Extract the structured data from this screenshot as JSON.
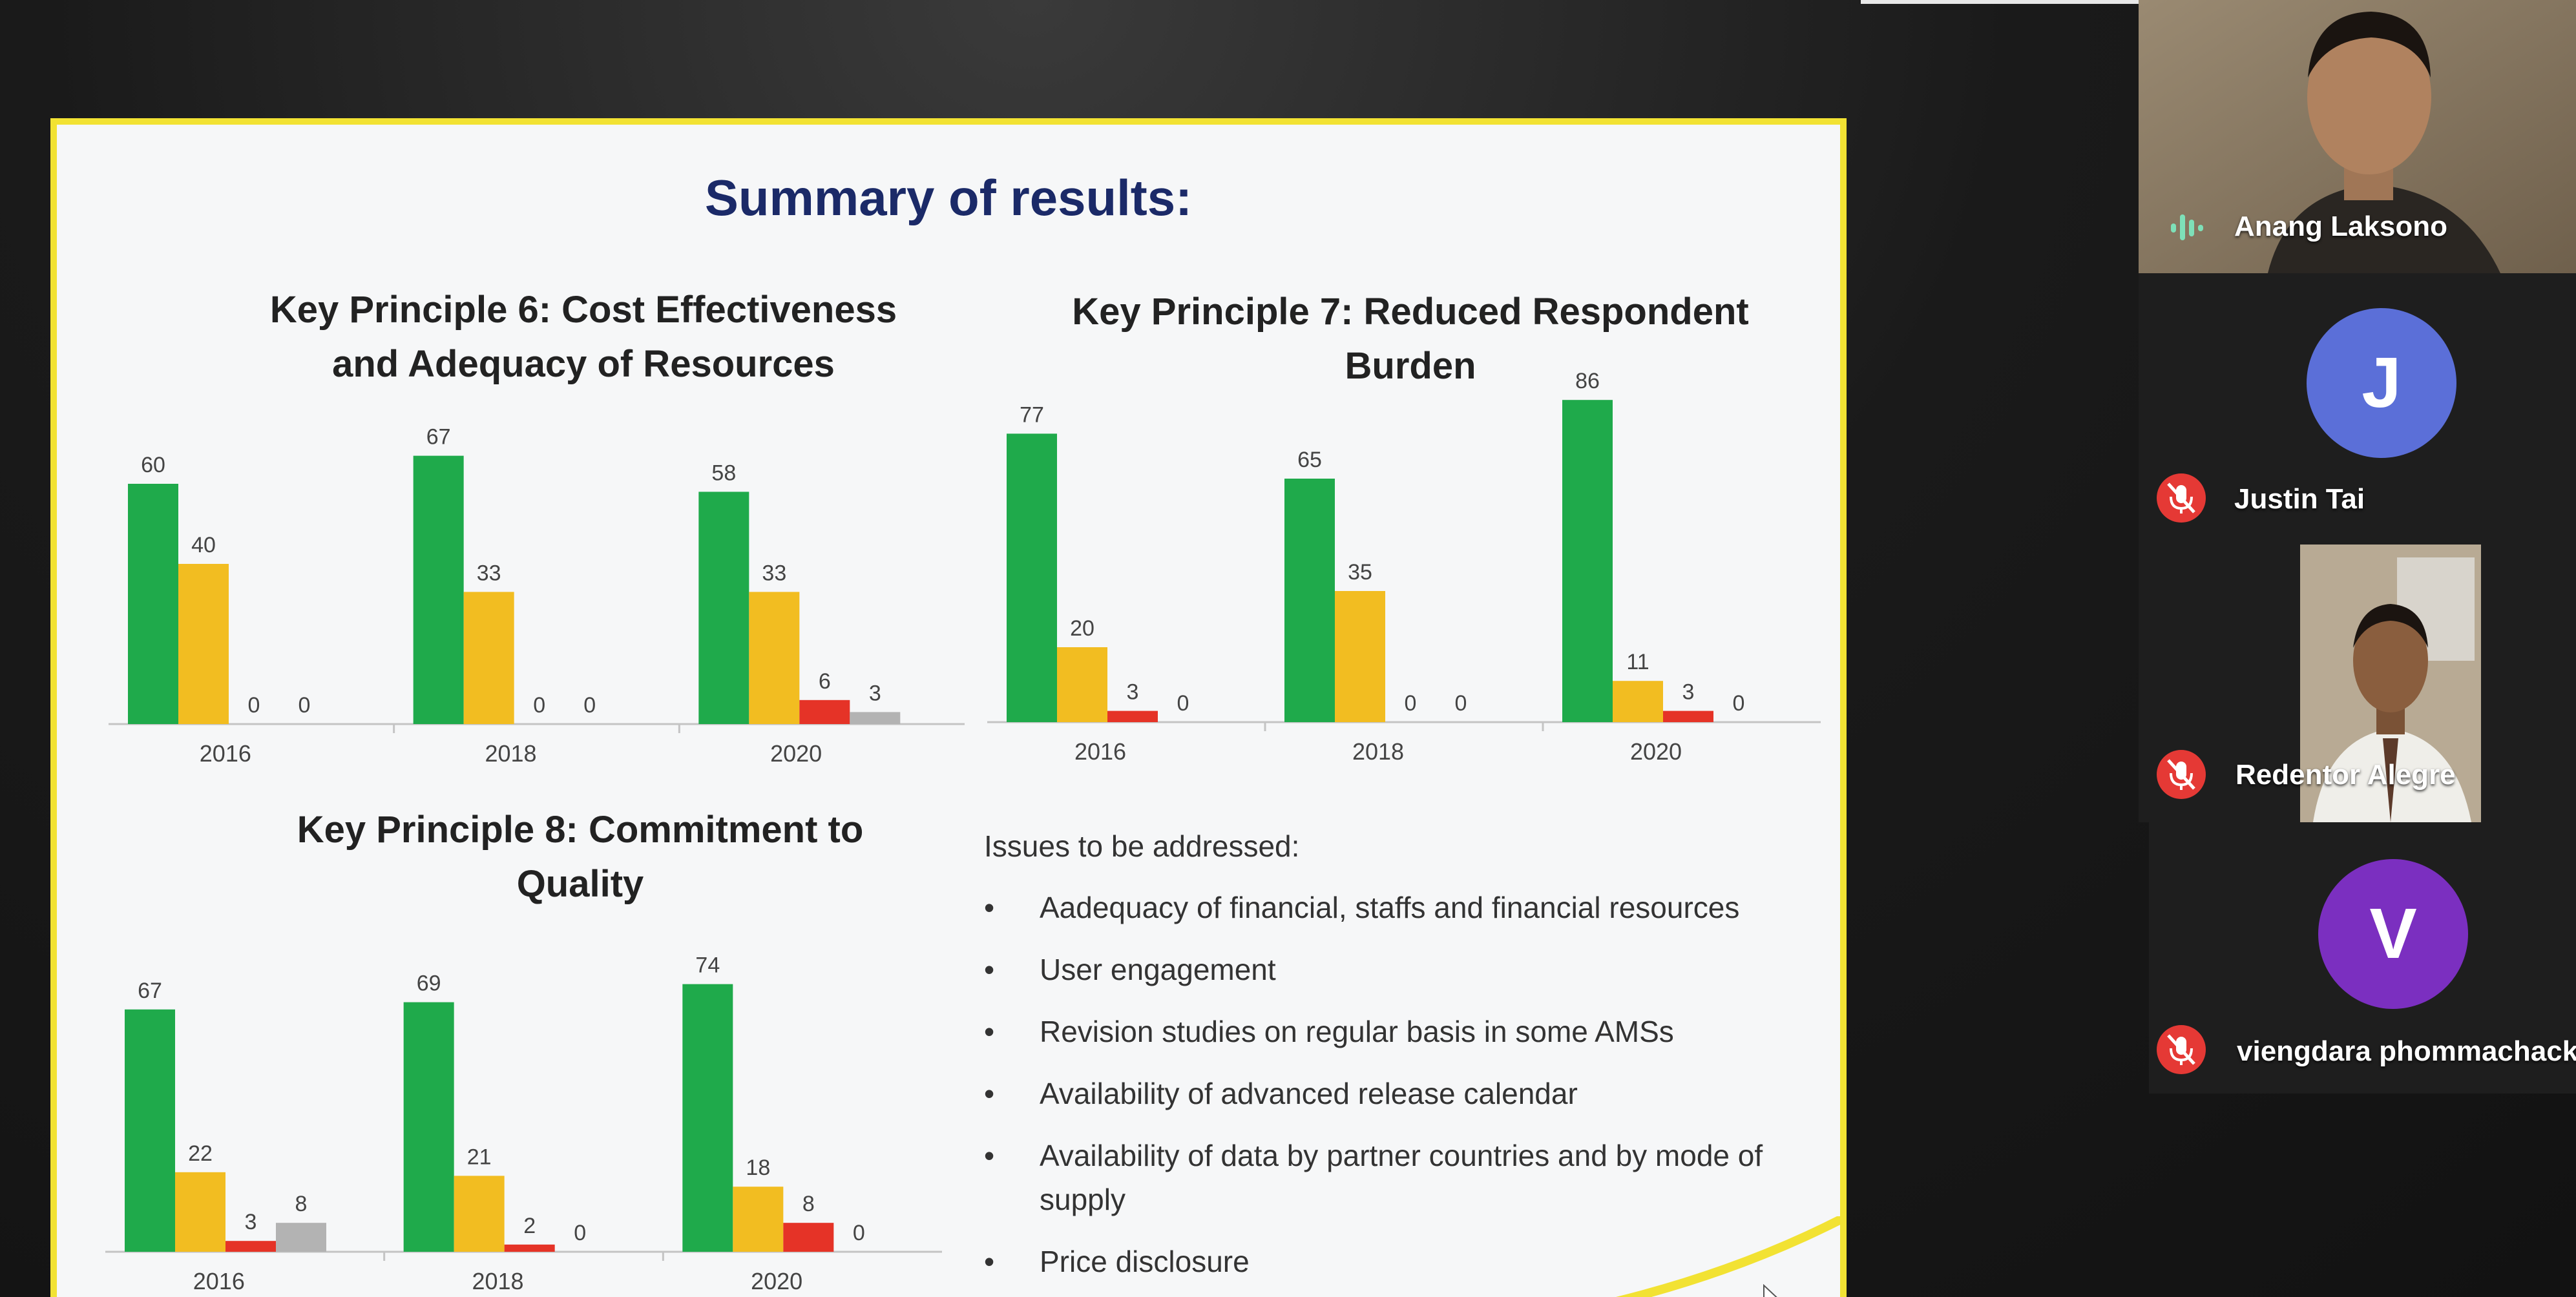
{
  "slide": {
    "title": "Summary of results:",
    "colors": {
      "green": "#1faa4b",
      "yellow": "#f2bd21",
      "red": "#e53327",
      "grey": "#b3b3b3"
    }
  },
  "chart_data": [
    {
      "type": "bar",
      "title": "Key Principle 6: Cost Effectiveness and Adequacy of Resources",
      "categories": [
        "2016",
        "2018",
        "2020"
      ],
      "series": [
        {
          "values": [
            60,
            67,
            58
          ]
        },
        {
          "values": [
            40,
            33,
            33
          ]
        },
        {
          "values": [
            0,
            0,
            6
          ]
        },
        {
          "values": [
            0,
            0,
            3
          ]
        }
      ],
      "ylim": [
        0,
        100
      ],
      "grid": false,
      "legend": "none"
    },
    {
      "type": "bar",
      "title": "Key Principle 7: Reduced Respondent Burden",
      "categories": [
        "2016",
        "2018",
        "2020"
      ],
      "series": [
        {
          "values": [
            77,
            65,
            86
          ]
        },
        {
          "values": [
            20,
            35,
            11
          ]
        },
        {
          "values": [
            3,
            0,
            3
          ]
        },
        {
          "values": [
            0,
            0,
            0
          ]
        }
      ],
      "ylim": [
        0,
        100
      ],
      "grid": false,
      "legend": "none"
    },
    {
      "type": "bar",
      "title": "Key Principle 8: Commitment to Quality",
      "categories": [
        "2016",
        "2018",
        "2020"
      ],
      "series": [
        {
          "values": [
            67,
            69,
            74
          ]
        },
        {
          "values": [
            22,
            21,
            18
          ]
        },
        {
          "values": [
            3,
            2,
            8
          ]
        },
        {
          "values": [
            8,
            0,
            0
          ]
        }
      ],
      "ylim": [
        0,
        100
      ],
      "grid": false,
      "legend": "none"
    }
  ],
  "chart_titles": [
    {
      "line1": "Key Principle 6: Cost Effectiveness",
      "line2": "and Adequacy of Resources"
    },
    {
      "line1": "Key Principle 7: Reduced Respondent",
      "line2": "Burden"
    },
    {
      "line1": "Key Principle 8: Commitment to",
      "line2": "Quality"
    }
  ],
  "issues": {
    "heading": "Issues to be addressed:",
    "bullet": "•",
    "items": [
      "Aadequacy of financial, staffs and financial resources",
      "User engagement",
      "Revision studies on regular basis in some AMSs",
      "Availability of advanced release calendar",
      "Availability of data by partner countries and by mode of supply",
      "Price disclosure"
    ]
  },
  "participants": [
    {
      "name": "Anang Laksono",
      "status": "speaking",
      "icon": "audio-wave-icon"
    },
    {
      "name": "Justin Tai",
      "initial": "J",
      "avatar_color": "#5b6fd8",
      "status": "muted",
      "icon": "mic-muted-icon"
    },
    {
      "name": "Redentor Alegre",
      "status": "muted",
      "icon": "mic-muted-icon"
    },
    {
      "name": "viengdara phommachack",
      "initial": "V",
      "avatar_color": "#7b2fc0",
      "status": "muted",
      "icon": "mic-muted-icon"
    }
  ]
}
